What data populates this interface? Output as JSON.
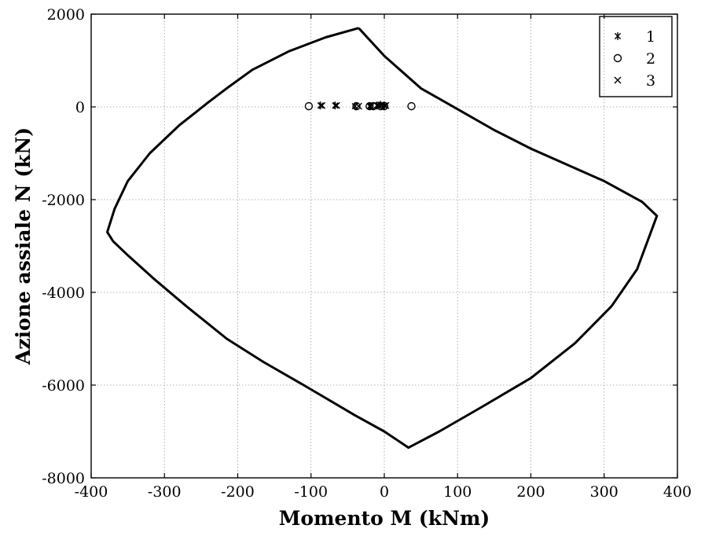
{
  "chart_data": {
    "type": "scatter",
    "title": "",
    "xlabel": "Momento M (kNm)",
    "ylabel": "Azione assiale N (kN)",
    "xlim": [
      -400,
      400
    ],
    "ylim": [
      -8000,
      2000
    ],
    "xticks": [
      -400,
      -300,
      -200,
      -100,
      0,
      100,
      200,
      300,
      400
    ],
    "yticks": [
      -8000,
      -6000,
      -4000,
      -2000,
      0,
      2000
    ],
    "grid": true,
    "legend_position": "top-right",
    "domain_curve": {
      "points": [
        [
          -35,
          1700
        ],
        [
          -80,
          1500
        ],
        [
          -130,
          1200
        ],
        [
          -180,
          800
        ],
        [
          -215,
          400
        ],
        [
          -240,
          100
        ],
        [
          -280,
          -400
        ],
        [
          -320,
          -1000
        ],
        [
          -350,
          -1600
        ],
        [
          -368,
          -2200
        ],
        [
          -378,
          -2700
        ],
        [
          -370,
          -2900
        ],
        [
          -350,
          -3200
        ],
        [
          -315,
          -3700
        ],
        [
          -270,
          -4300
        ],
        [
          -215,
          -5000
        ],
        [
          -165,
          -5500
        ],
        [
          -110,
          -6000
        ],
        [
          -40,
          -6650
        ],
        [
          0,
          -7000
        ],
        [
          33,
          -7350
        ],
        [
          75,
          -7000
        ],
        [
          130,
          -6500
        ],
        [
          200,
          -5850
        ],
        [
          260,
          -5100
        ],
        [
          310,
          -4300
        ],
        [
          345,
          -3500
        ],
        [
          372,
          -2350
        ],
        [
          352,
          -2050
        ],
        [
          300,
          -1600
        ],
        [
          250,
          -1250
        ],
        [
          200,
          -900
        ],
        [
          150,
          -500
        ],
        [
          100,
          -50
        ],
        [
          50,
          400
        ],
        [
          0,
          1100
        ],
        [
          -35,
          1700
        ]
      ]
    },
    "series": [
      {
        "name": "1",
        "marker": "asterisk",
        "points": [
          [
            -87,
            30
          ],
          [
            -67,
            30
          ],
          [
            -40,
            15
          ],
          [
            -20,
            15
          ],
          [
            -10,
            30
          ],
          [
            -5,
            45
          ],
          [
            0,
            30
          ]
        ]
      },
      {
        "name": "2",
        "marker": "circle",
        "points": [
          [
            -103,
            15
          ],
          [
            -38,
            15
          ],
          [
            -20,
            15
          ],
          [
            -15,
            15
          ],
          [
            -5,
            15
          ],
          [
            0,
            15
          ],
          [
            37,
            15
          ]
        ]
      },
      {
        "name": "3",
        "marker": "cross",
        "points": [
          [
            -85,
            30
          ],
          [
            -65,
            30
          ],
          [
            -35,
            15
          ],
          [
            -18,
            15
          ],
          [
            -8,
            30
          ],
          [
            -3,
            40
          ],
          [
            2,
            30
          ]
        ]
      }
    ]
  }
}
